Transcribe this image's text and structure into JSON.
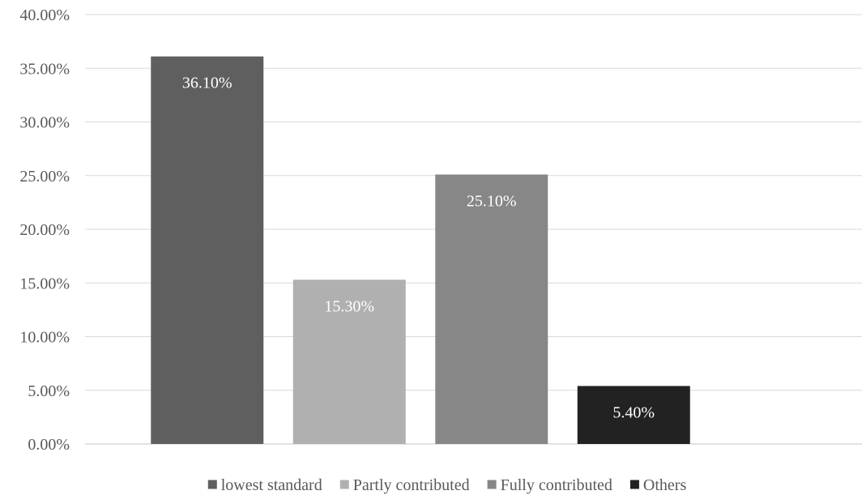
{
  "chart_data": {
    "type": "bar",
    "categories": [
      "lowest standard",
      "Partly contributed",
      "Fully contributed",
      "Others"
    ],
    "values": [
      36.1,
      15.3,
      25.1,
      5.4
    ],
    "data_labels": [
      "36.10%",
      "15.30%",
      "25.10%",
      "5.40%"
    ],
    "colors": [
      "#5f5f5f",
      "#b0b0b0",
      "#878787",
      "#222222"
    ],
    "ylim": [
      0,
      40
    ],
    "y_ticks": [
      0,
      5,
      10,
      15,
      20,
      25,
      30,
      35,
      40
    ],
    "y_tick_labels": [
      "0.00%",
      "5.00%",
      "10.00%",
      "15.00%",
      "20.00%",
      "25.00%",
      "30.00%",
      "35.00%",
      "40.00%"
    ],
    "title": "",
    "xlabel": "",
    "ylabel": "",
    "grid": true,
    "legend": {
      "position": "bottom",
      "entries": [
        "lowest standard",
        "Partly contributed",
        "Fully contributed",
        "Others"
      ]
    }
  }
}
